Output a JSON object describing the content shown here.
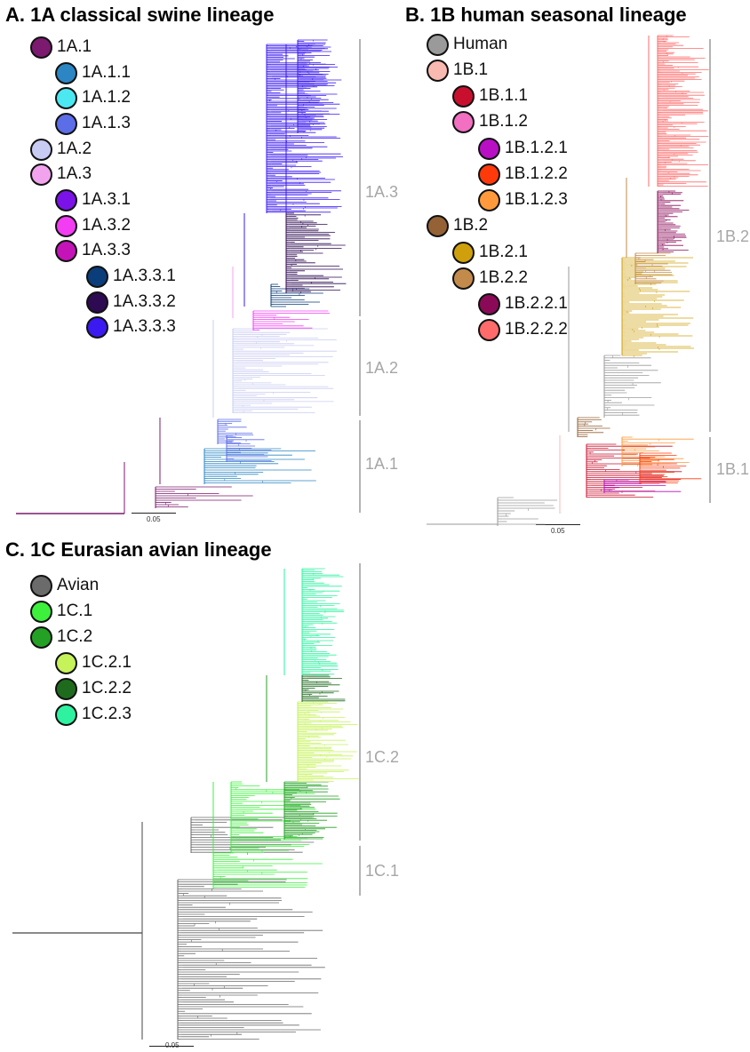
{
  "panels": {
    "a": {
      "title": "A. 1A classical swine lineage",
      "legend": [
        {
          "label": "1A.1",
          "color": "#7b1a6e",
          "level": 0
        },
        {
          "label": "1A.1.1",
          "color": "#2b86c3",
          "level": 1
        },
        {
          "label": "1A.1.2",
          "color": "#4ce8f2",
          "level": 1
        },
        {
          "label": "1A.1.3",
          "color": "#5b6ee8",
          "level": 1
        },
        {
          "label": "1A.2",
          "color": "#c9ccf2",
          "level": 0
        },
        {
          "label": "1A.3",
          "color": "#f2a3ee",
          "level": 0
        },
        {
          "label": "1A.3.1",
          "color": "#7b12e8",
          "level": 1
        },
        {
          "label": "1A.3.2",
          "color": "#f23df2",
          "level": 1
        },
        {
          "label": "1A.3.3",
          "color": "#c414b8",
          "level": 1
        },
        {
          "label": "1A.3.3.1",
          "color": "#0a3d7a",
          "level": 2
        },
        {
          "label": "1A.3.3.2",
          "color": "#2e0a52",
          "level": 2
        },
        {
          "label": "1A.3.3.3",
          "color": "#3a1af0",
          "level": 2
        }
      ],
      "clades": [
        "1A.3",
        "1A.2",
        "1A.1"
      ],
      "scale_label": "0.05"
    },
    "b": {
      "title": "B. 1B human seasonal lineage",
      "legend": [
        {
          "label": "Human",
          "color": "#9a9a9a",
          "level": 0
        },
        {
          "label": "1B.1",
          "color": "#f8b9b1",
          "level": 0
        },
        {
          "label": "1B.1.1",
          "color": "#c8102e",
          "level": 1
        },
        {
          "label": "1B.1.2",
          "color": "#f26fc2",
          "level": 1
        },
        {
          "label": "1B.1.2.1",
          "color": "#b80fc4",
          "level": 2
        },
        {
          "label": "1B.1.2.2",
          "color": "#ff3a0a",
          "level": 2
        },
        {
          "label": "1B.1.2.3",
          "color": "#ff9a3c",
          "level": 2
        },
        {
          "label": "1B.2",
          "color": "#946234",
          "level": 0
        },
        {
          "label": "1B.2.1",
          "color": "#cfa00c",
          "level": 1
        },
        {
          "label": "1B.2.2",
          "color": "#c28b4c",
          "level": 1
        },
        {
          "label": "1B.2.2.1",
          "color": "#8a0a58",
          "level": 2
        },
        {
          "label": "1B.2.2.2",
          "color": "#ff6b6b",
          "level": 2
        }
      ],
      "clades": [
        "1B.2",
        "1B.1"
      ],
      "scale_label": "0.05"
    },
    "c": {
      "title": "C. 1C Eurasian avian lineage",
      "legend": [
        {
          "label": "Avian",
          "color": "#6b6b6b",
          "level": 0
        },
        {
          "label": "1C.1",
          "color": "#3cf03c",
          "level": 0
        },
        {
          "label": "1C.2",
          "color": "#24a024",
          "level": 0
        },
        {
          "label": "1C.2.1",
          "color": "#c6f25a",
          "level": 1
        },
        {
          "label": "1C.2.2",
          "color": "#1e6b1e",
          "level": 1
        },
        {
          "label": "1C.2.3",
          "color": "#2ef2a0",
          "level": 1
        }
      ],
      "clades": [
        "1C.2",
        "1C.1"
      ],
      "scale_label": "0.05"
    }
  }
}
